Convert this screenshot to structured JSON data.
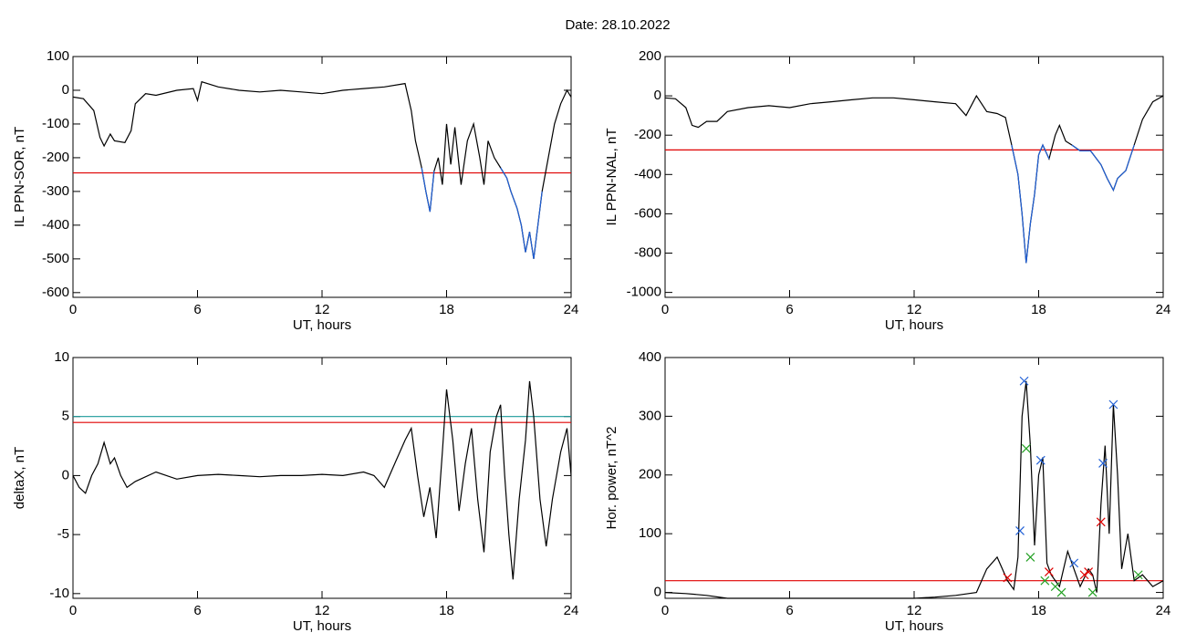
{
  "title": "Date:  28.10.2022",
  "chart_data": [
    {
      "type": "line",
      "ylabel": "IL PPN-SOR, nT",
      "xlabel": "UT, hours",
      "xlim": [
        0,
        24
      ],
      "xticks": [
        0,
        6,
        12,
        18,
        24
      ],
      "ylim": [
        -614,
        100
      ],
      "yticks": [
        100,
        0,
        -100,
        -200,
        -300,
        -400,
        -500,
        -600
      ],
      "x": [
        0,
        0.5,
        1,
        1.3,
        1.5,
        1.8,
        2,
        2.5,
        2.8,
        3,
        3.5,
        4,
        5,
        5.8,
        6,
        6.2,
        7,
        8,
        9,
        10,
        11,
        12,
        13,
        14,
        15,
        16,
        16.3,
        16.5,
        16.8,
        17,
        17.2,
        17.4,
        17.6,
        17.8,
        18,
        18.2,
        18.4,
        18.7,
        19,
        19.3,
        19.6,
        19.8,
        20,
        20.3,
        20.6,
        20.9,
        21.1,
        21.4,
        21.6,
        21.8,
        22,
        22.2,
        22.4,
        22.6,
        22.9,
        23.2,
        23.5,
        23.8,
        24
      ],
      "series": [
        {
          "color": "#000000",
          "values": [
            -20,
            -25,
            -60,
            -140,
            -165,
            -130,
            -150,
            -155,
            -120,
            -40,
            -10,
            -15,
            0,
            5,
            -30,
            25,
            10,
            0,
            -5,
            0,
            -5,
            -10,
            0,
            5,
            10,
            20,
            -60,
            -150,
            -230,
            -300,
            -360,
            -240,
            -200,
            -280,
            -100,
            -220,
            -110,
            -280,
            -150,
            -100,
            -200,
            -280,
            -150,
            -200,
            -230,
            -260,
            -300,
            -350,
            -400,
            -480,
            -420,
            -500,
            -400,
            -300,
            -200,
            -100,
            -40,
            0,
            -20
          ]
        },
        {
          "color": "#1f5fd6",
          "values": [
            null,
            null,
            null,
            null,
            null,
            null,
            null,
            null,
            null,
            null,
            null,
            null,
            null,
            null,
            null,
            null,
            null,
            null,
            null,
            null,
            null,
            null,
            null,
            null,
            null,
            null,
            null,
            null,
            -230,
            -300,
            -360,
            -240,
            null,
            -280,
            null,
            null,
            null,
            -280,
            null,
            null,
            null,
            -280,
            null,
            null,
            -230,
            -260,
            -300,
            -350,
            -400,
            -480,
            -420,
            -500,
            -400,
            -300,
            null,
            null,
            null,
            null,
            null
          ]
        }
      ],
      "hlines": [
        {
          "value": -245,
          "color": "#e00000"
        }
      ]
    },
    {
      "type": "line",
      "ylabel": "IL PPN-NAL, nT",
      "xlabel": "UT, hours",
      "xlim": [
        0,
        24
      ],
      "xticks": [
        0,
        6,
        12,
        18,
        24
      ],
      "ylim": [
        -1025,
        200
      ],
      "yticks": [
        200,
        0,
        -200,
        -400,
        -600,
        -800,
        -1000
      ],
      "x": [
        0,
        0.5,
        1,
        1.3,
        1.6,
        2,
        2.5,
        3,
        4,
        5,
        6,
        7,
        8,
        9,
        10,
        11,
        12,
        13,
        14,
        14.5,
        15,
        15.5,
        16,
        16.4,
        16.7,
        17,
        17.2,
        17.4,
        17.6,
        17.8,
        18,
        18.2,
        18.5,
        18.8,
        19,
        19.3,
        19.6,
        20,
        20.5,
        21,
        21.3,
        21.6,
        21.8,
        22.2,
        22.6,
        23,
        23.5,
        24
      ],
      "series": [
        {
          "color": "#000000",
          "values": [
            -10,
            -15,
            -60,
            -150,
            -160,
            -130,
            -130,
            -80,
            -60,
            -50,
            -60,
            -40,
            -30,
            -20,
            -10,
            -10,
            -20,
            -30,
            -40,
            -100,
            0,
            -80,
            -90,
            -110,
            -250,
            -400,
            -600,
            -850,
            -650,
            -500,
            -300,
            -250,
            -320,
            -200,
            -150,
            -230,
            -250,
            -280,
            -280,
            -350,
            -420,
            -480,
            -420,
            -380,
            -250,
            -120,
            -30,
            0
          ]
        },
        {
          "color": "#1f5fd6",
          "values": [
            null,
            null,
            null,
            null,
            null,
            null,
            null,
            null,
            null,
            null,
            null,
            null,
            null,
            null,
            null,
            null,
            null,
            null,
            null,
            null,
            null,
            null,
            null,
            null,
            -250,
            -400,
            -600,
            -850,
            -650,
            -500,
            -300,
            -250,
            -320,
            null,
            null,
            null,
            -250,
            -280,
            -280,
            -350,
            -420,
            -480,
            -420,
            -380,
            -250,
            null,
            null,
            null
          ]
        }
      ],
      "hlines": [
        {
          "value": -275,
          "color": "#e00000"
        }
      ]
    },
    {
      "type": "line",
      "ylabel": "deltaX, nT",
      "xlabel": "UT, hours",
      "xlim": [
        0,
        24
      ],
      "xticks": [
        0,
        6,
        12,
        18,
        24
      ],
      "ylim": [
        -10.4,
        10
      ],
      "yticks": [
        10,
        5,
        0,
        -5,
        -10
      ],
      "x": [
        0,
        0.3,
        0.6,
        0.9,
        1.2,
        1.5,
        1.8,
        2,
        2.3,
        2.6,
        3,
        4,
        5,
        6,
        7,
        8,
        9,
        10,
        11,
        12,
        13,
        14,
        14.5,
        15,
        15.5,
        16,
        16.3,
        16.6,
        16.9,
        17.2,
        17.5,
        17.8,
        18,
        18.3,
        18.6,
        18.9,
        19.2,
        19.5,
        19.8,
        20.1,
        20.4,
        20.6,
        20.8,
        21,
        21.2,
        21.5,
        21.8,
        22,
        22.2,
        22.5,
        22.8,
        23.1,
        23.5,
        23.8,
        24
      ],
      "series": [
        {
          "color": "#000000",
          "values": [
            0,
            -1,
            -1.5,
            0,
            1,
            2.8,
            1,
            1.5,
            0,
            -1,
            -0.5,
            0.3,
            -0.3,
            0,
            0.1,
            0,
            -0.1,
            0,
            0,
            0.1,
            0,
            0.3,
            0,
            -1,
            1,
            3,
            4,
            0,
            -3.5,
            -1,
            -5.3,
            2,
            7.3,
            3,
            -3,
            1,
            4,
            -2,
            -6.5,
            2,
            5,
            6,
            0,
            -5,
            -8.8,
            -2,
            3,
            8,
            5,
            -2,
            -6,
            -2,
            2,
            4,
            0
          ]
        }
      ],
      "hlines": [
        {
          "value": 4.5,
          "color": "#e00000"
        },
        {
          "value": 5,
          "color": "#1a9a9a"
        }
      ]
    },
    {
      "type": "line",
      "ylabel": "Hor. power, nT^2",
      "xlabel": "UT, hours",
      "xlim": [
        0,
        24
      ],
      "xticks": [
        0,
        6,
        12,
        18,
        24
      ],
      "ylim": [
        -10,
        400
      ],
      "yticks": [
        400,
        300,
        200,
        100,
        0
      ],
      "x": [
        0,
        1,
        2,
        3,
        12,
        13,
        14,
        15,
        15.5,
        16,
        16.5,
        16.8,
        17,
        17.2,
        17.4,
        17.6,
        17.8,
        18,
        18.2,
        18.4,
        18.6,
        19,
        19.4,
        19.6,
        20,
        20.4,
        20.6,
        20.8,
        21,
        21.2,
        21.4,
        21.6,
        21.8,
        22,
        22.3,
        22.6,
        23,
        23.5,
        24
      ],
      "series": [
        {
          "color": "#000000",
          "values": [
            0,
            -2,
            -5,
            -10,
            -10,
            -8,
            -5,
            0,
            40,
            60,
            20,
            5,
            60,
            300,
            360,
            250,
            80,
            200,
            230,
            50,
            30,
            10,
            70,
            50,
            10,
            40,
            30,
            0,
            150,
            250,
            100,
            320,
            200,
            40,
            100,
            20,
            30,
            10,
            20
          ]
        }
      ],
      "hlines": [
        {
          "value": 20,
          "color": "#e00000"
        }
      ],
      "markers": [
        {
          "color": "#1f5fd6",
          "x": [
            17.3,
            17.1,
            18.1,
            19.7,
            21.1,
            21.6
          ],
          "y": [
            360,
            105,
            225,
            50,
            220,
            320
          ]
        },
        {
          "color": "#e00000",
          "x": [
            16.5,
            18.5,
            20.4,
            21,
            20.2
          ],
          "y": [
            25,
            35,
            35,
            120,
            30
          ]
        },
        {
          "color": "#22a022",
          "x": [
            17.4,
            17.6,
            18.3,
            19.1,
            20.6,
            22.8,
            18.8
          ],
          "y": [
            245,
            60,
            20,
            0,
            0,
            30,
            10
          ]
        }
      ]
    }
  ]
}
